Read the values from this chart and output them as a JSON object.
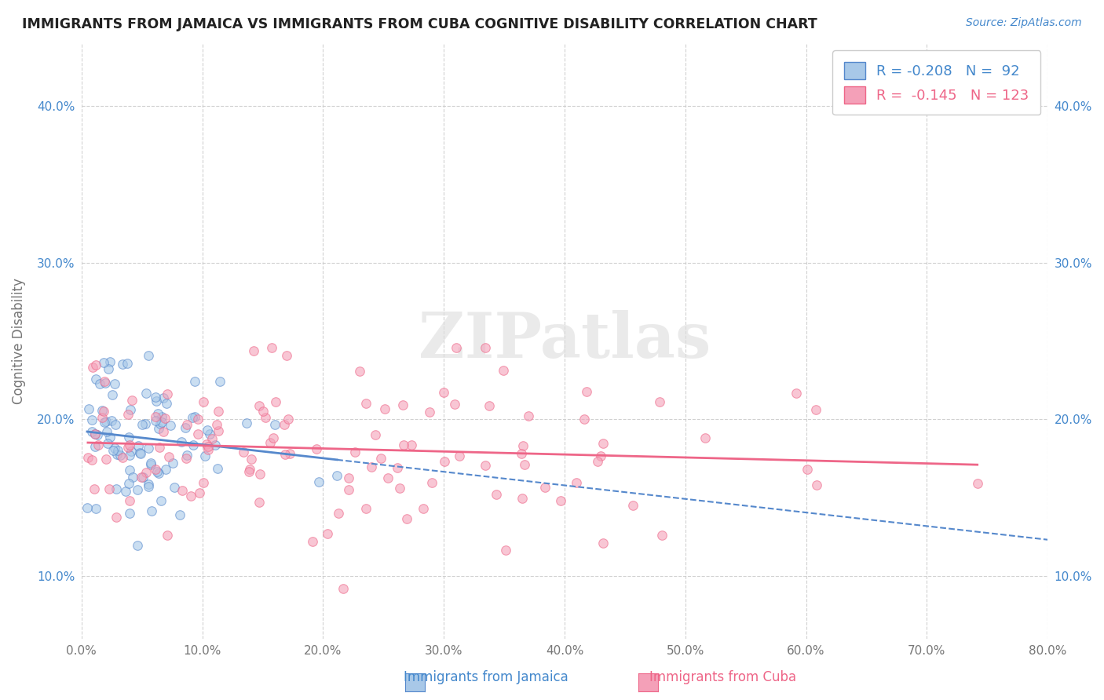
{
  "title": "IMMIGRANTS FROM JAMAICA VS IMMIGRANTS FROM CUBA COGNITIVE DISABILITY CORRELATION CHART",
  "source": "Source: ZipAtlas.com",
  "xlabel_label": "Immigrants from Jamaica",
  "xlabel_label2": "Immigrants from Cuba",
  "ylabel": "Cognitive Disability",
  "xlim": [
    0.0,
    0.8
  ],
  "ylim": [
    0.06,
    0.44
  ],
  "xticks": [
    0.0,
    0.1,
    0.2,
    0.3,
    0.4,
    0.5,
    0.6,
    0.7,
    0.8
  ],
  "xtick_labels": [
    "0.0%",
    "10.0%",
    "20.0%",
    "30.0%",
    "40.0%",
    "50.0%",
    "60.0%",
    "70.0%",
    "80.0%"
  ],
  "yticks": [
    0.1,
    0.2,
    0.3,
    0.4
  ],
  "ytick_labels": [
    "10.0%",
    "20.0%",
    "30.0%",
    "40.0%"
  ],
  "color_jamaica": "#a8c8e8",
  "color_cuba": "#f4a0b8",
  "line_color_jamaica": "#5588cc",
  "line_color_cuba": "#ee6688",
  "text_color_blue": "#4488cc",
  "watermark": "ZIPatlas",
  "background_color": "#ffffff",
  "grid_color": "#cccccc",
  "R1": -0.208,
  "N1": 92,
  "R2": -0.145,
  "N2": 123,
  "seed": 42
}
